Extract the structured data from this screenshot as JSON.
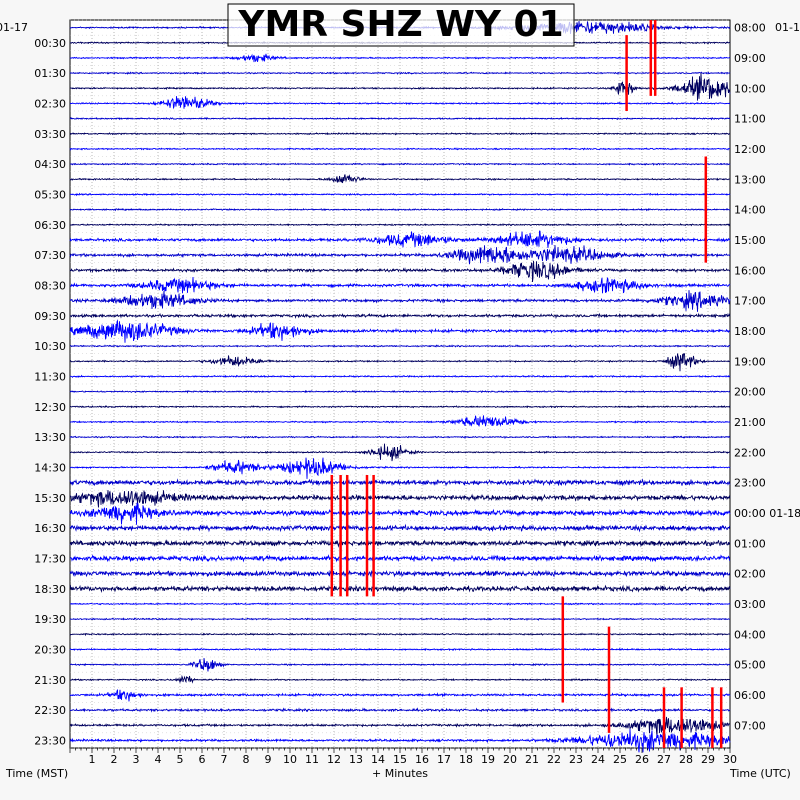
{
  "chart_data": {
    "type": "line",
    "title": "YMR SHZ WY 01",
    "xlabel": "+ Minutes",
    "ylabel_left": "Time (MST)",
    "ylabel_right": "Time (UTC)",
    "date_left": "01-17",
    "date_right": "01-1",
    "x_ticks": [
      "1",
      "2",
      "3",
      "4",
      "5",
      "6",
      "7",
      "8",
      "9",
      "10",
      "11",
      "12",
      "13",
      "14",
      "15",
      "16",
      "17",
      "18",
      "19",
      "20",
      "21",
      "22",
      "23",
      "24",
      "25",
      "26",
      "27",
      "28",
      "29",
      "30"
    ],
    "xlim": [
      0,
      30
    ],
    "left_labels": [
      "00:30",
      "01:30",
      "02:30",
      "03:30",
      "04:30",
      "05:30",
      "06:30",
      "07:30",
      "08:30",
      "09:30",
      "10:30",
      "11:30",
      "12:30",
      "13:30",
      "14:30",
      "15:30",
      "16:30",
      "17:30",
      "18:30",
      "19:30",
      "20:30",
      "21:30",
      "22:30",
      "23:30"
    ],
    "right_labels": [
      "08:00",
      "09:00",
      "10:00",
      "11:00",
      "12:00",
      "13:00",
      "14:00",
      "15:00",
      "16:00",
      "17:00",
      "18:00",
      "19:00",
      "20:00",
      "21:00",
      "22:00",
      "23:00",
      "00:00 01-18",
      "01:00",
      "02:00",
      "03:00",
      "04:00",
      "05:00",
      "06:00",
      "07:00"
    ],
    "n_rows": 48,
    "row_minutes": 30,
    "trace_colors": [
      "#0000cd",
      "#00005f",
      "#0000ff"
    ],
    "clip_color": "#ff0000",
    "grid": true
  }
}
